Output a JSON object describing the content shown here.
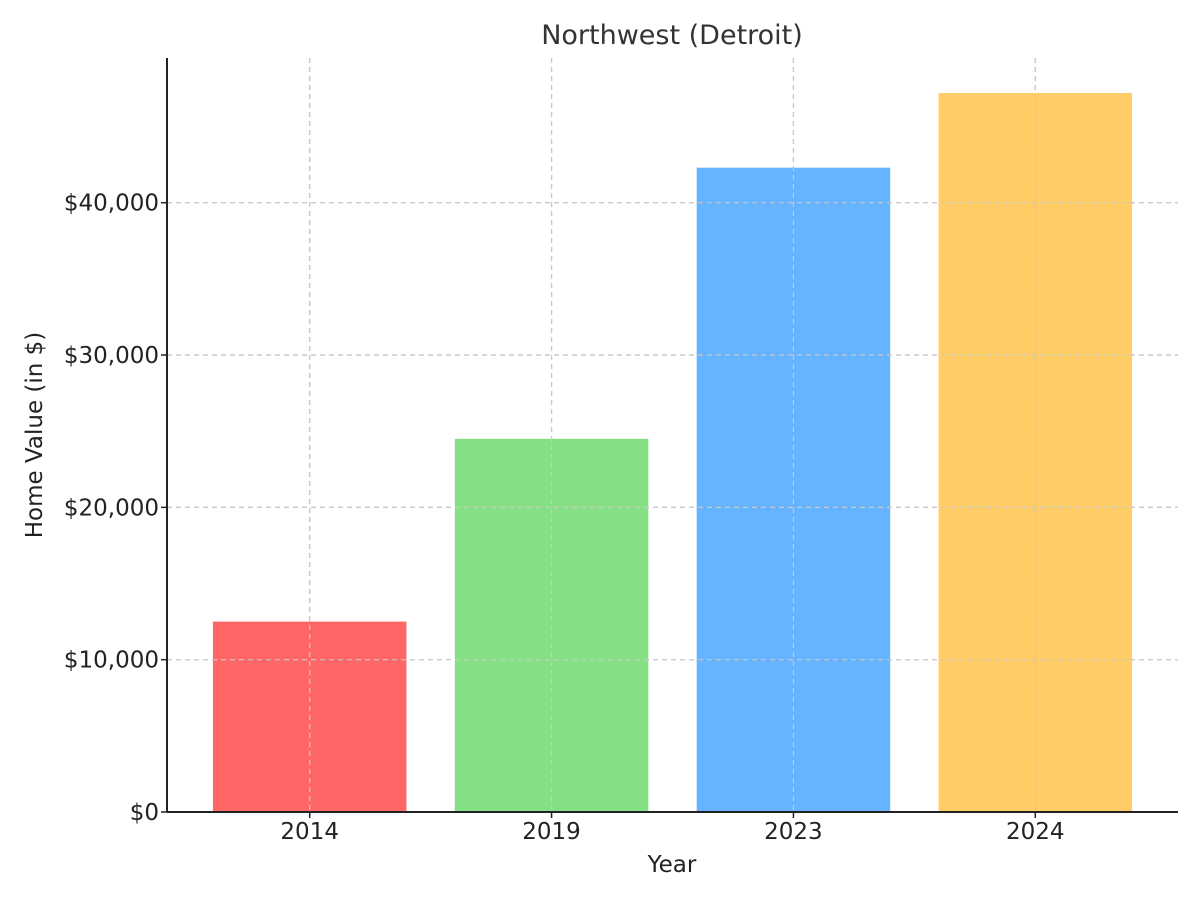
{
  "chart_data": {
    "type": "bar",
    "title": "Northwest (Detroit)",
    "xlabel": "Year",
    "ylabel": "Home Value (in $)",
    "categories": [
      "2014",
      "2019",
      "2023",
      "2024"
    ],
    "values": [
      12500,
      24500,
      42300,
      47200
    ],
    "colors": [
      "#ff6666",
      "#85e085",
      "#66b3ff",
      "#ffcc66"
    ],
    "ylim": [
      0,
      49500
    ],
    "yticks": [
      0,
      10000,
      20000,
      30000,
      40000
    ],
    "ytick_labels": [
      "$0",
      "$10,000",
      "$20,000",
      "$30,000",
      "$40,000"
    ],
    "grid": true,
    "legend": "none"
  }
}
